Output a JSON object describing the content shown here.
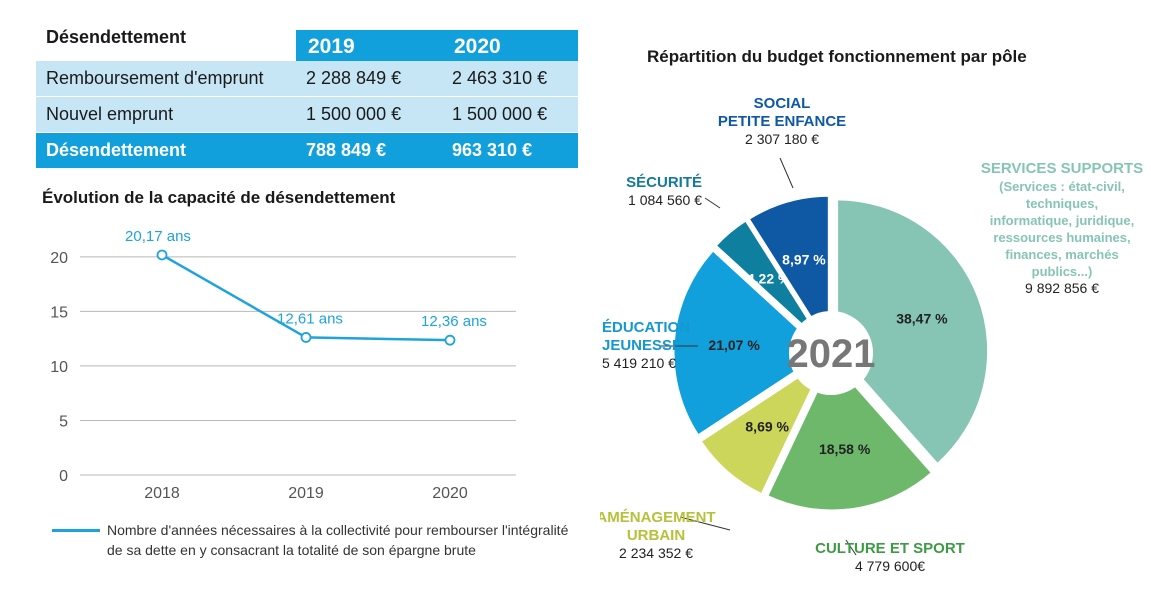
{
  "table": {
    "title": "Désendettement",
    "years": [
      "2019",
      "2020"
    ],
    "rows": [
      {
        "label": "Remboursement d'emprunt",
        "v2019": "2 288 849 €",
        "v2020": "2 463 310 €"
      },
      {
        "label": "Nouvel emprunt",
        "v2019": "1 500 000  €",
        "v2020": "1 500 000  €"
      }
    ],
    "total": {
      "label": "Désendettement",
      "v2019": "788 849  €",
      "v2020": "963 310 €"
    }
  },
  "chart_data": [
    {
      "type": "line",
      "title": "Évolution de la capacité de désendettement",
      "x": [
        "2018",
        "2019",
        "2020"
      ],
      "series": [
        {
          "name": "Nombre d'années nécessaires à la collectivité pour rembourser l'intégralité de sa dette en y consacrant la totalité de son épargne brute",
          "values": [
            20.17,
            12.61,
            12.36
          ],
          "labels": [
            "20,17 ans",
            "12,61 ans",
            "12,36 ans"
          ]
        }
      ],
      "yticks": [
        0,
        5,
        10,
        15,
        20
      ],
      "ylim": [
        0,
        22
      ],
      "grid": "horizontal",
      "legend": "bottom",
      "color": "#1ea3dc"
    },
    {
      "type": "pie",
      "title": "Répartition du budget fonctionnement par pôle",
      "center_label": "2021",
      "slices": [
        {
          "name_lines": [
            "SERVICES SUPPORTS"
          ],
          "sub_lines": [
            "(Services : état-civil,",
            "techniques,",
            "informatique, juridique,",
            "ressources humaines,",
            "finances, marchés",
            "publics...)"
          ],
          "value": 38.47,
          "pct_label": "38,47 %",
          "amount": "9 892 856 €",
          "color": "#86c5b3",
          "label_color": "#86c5b3"
        },
        {
          "name_lines": [
            "CULTURE ET SPORT"
          ],
          "value": 18.58,
          "pct_label": "18,58 %",
          "amount": "4 779 600€",
          "color": "#6db86b",
          "label_color": "#3f9a45"
        },
        {
          "name_lines": [
            "AMÉNAGEMENT",
            "URBAIN"
          ],
          "value": 8.69,
          "pct_label": "8,69 %",
          "amount": "2 234 352 €",
          "color": "#ccd65b",
          "label_color": "#b5c23a"
        },
        {
          "name_lines": [
            "ÉDUCATION",
            "JEUNESSE"
          ],
          "value": 21.07,
          "pct_label": "21,07 %",
          "amount": "5 419 210 €",
          "color": "#12a0dc",
          "label_color": "#1598d2"
        },
        {
          "name_lines": [
            "SÉCURITÉ"
          ],
          "value": 4.22,
          "pct_label": "4,22 %",
          "amount": "1 084 560 €",
          "color": "#0f7fa0",
          "label_color": "#137a9a"
        },
        {
          "name_lines": [
            "SOCIAL",
            "PETITE ENFANCE"
          ],
          "value": 8.97,
          "pct_label": "8,97 %",
          "amount": "2 307 180 €",
          "color": "#0f59a4",
          "label_color": "#0f59a4"
        }
      ]
    }
  ]
}
